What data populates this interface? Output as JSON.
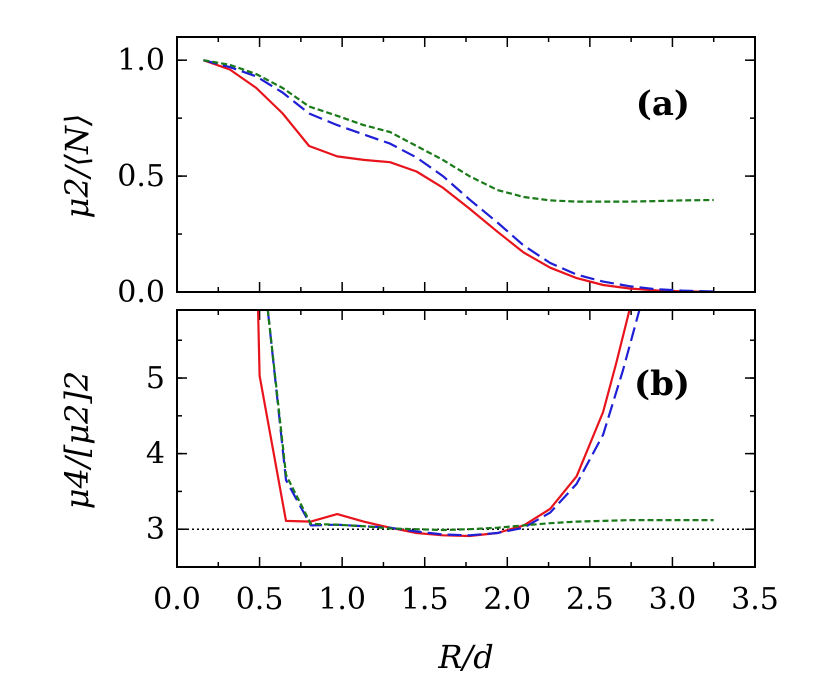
{
  "chart_data": [
    {
      "panel": "(a)",
      "type": "line",
      "ylabel": "μ2/⟨N⟩",
      "xlabel": "",
      "xlim": [
        0.0,
        3.5
      ],
      "ylim": [
        0.0,
        1.1
      ],
      "x_ticks": [
        "0.0",
        "0.5",
        "1.0",
        "1.5",
        "2.0",
        "2.5",
        "3.0",
        "3.5"
      ],
      "y_ticks": [
        "0.0",
        "0.5",
        "1.0"
      ],
      "series": [
        {
          "color": "#e8141c",
          "dash": "solid",
          "x": [
            0.16,
            0.32,
            0.48,
            0.64,
            0.8,
            0.97,
            1.13,
            1.29,
            1.45,
            1.61,
            1.77,
            1.94,
            2.1,
            2.26,
            2.42,
            2.58,
            2.74,
            2.9,
            3.06,
            3.25
          ],
          "y": [
            1.0,
            0.96,
            0.88,
            0.77,
            0.63,
            0.585,
            0.57,
            0.56,
            0.52,
            0.45,
            0.36,
            0.26,
            0.17,
            0.105,
            0.06,
            0.03,
            0.015,
            0.007,
            0.003,
            0.001
          ]
        },
        {
          "color": "#1f1fd6",
          "dash": "long",
          "x": [
            0.16,
            0.32,
            0.48,
            0.64,
            0.8,
            0.97,
            1.13,
            1.29,
            1.45,
            1.61,
            1.77,
            1.94,
            2.1,
            2.26,
            2.42,
            2.58,
            2.74,
            2.9,
            3.06,
            3.25
          ],
          "y": [
            1.0,
            0.97,
            0.93,
            0.86,
            0.77,
            0.72,
            0.68,
            0.64,
            0.58,
            0.5,
            0.4,
            0.3,
            0.2,
            0.125,
            0.075,
            0.045,
            0.025,
            0.012,
            0.006,
            0.002
          ]
        },
        {
          "color": "#1a7a1a",
          "dash": "short",
          "x": [
            0.16,
            0.32,
            0.48,
            0.64,
            0.8,
            0.97,
            1.13,
            1.29,
            1.45,
            1.61,
            1.77,
            1.94,
            2.1,
            2.26,
            2.42,
            2.58,
            2.74,
            2.9,
            3.06,
            3.25
          ],
          "y": [
            1.0,
            0.98,
            0.94,
            0.88,
            0.8,
            0.76,
            0.72,
            0.69,
            0.63,
            0.57,
            0.5,
            0.44,
            0.41,
            0.395,
            0.39,
            0.39,
            0.39,
            0.392,
            0.395,
            0.397
          ]
        }
      ]
    },
    {
      "panel": "(b)",
      "type": "line",
      "ylabel": "μ4/[μ2]2",
      "xlabel": "R/d",
      "xlim": [
        0.0,
        3.5
      ],
      "ylim": [
        2.5,
        5.9
      ],
      "x_ticks": [
        "0.0",
        "0.5",
        "1.0",
        "1.5",
        "2.0",
        "2.5",
        "3.0",
        "3.5"
      ],
      "y_ticks": [
        "3",
        "4",
        "5"
      ],
      "reference_line": {
        "y": 3,
        "style": "dotted",
        "color": "#000000"
      },
      "series": [
        {
          "color": "#e8141c",
          "dash": "solid",
          "x": [
            0.49,
            0.5,
            0.66,
            0.81,
            0.97,
            1.13,
            1.29,
            1.45,
            1.61,
            1.77,
            1.94,
            2.1,
            2.26,
            2.42,
            2.58,
            2.66,
            2.74
          ],
          "y": [
            6.0,
            5.03,
            3.11,
            3.1,
            3.2,
            3.1,
            3.02,
            2.95,
            2.92,
            2.91,
            2.95,
            3.05,
            3.27,
            3.7,
            4.55,
            5.2,
            5.9
          ]
        },
        {
          "color": "#1f1fd6",
          "dash": "long",
          "x": [
            0.55,
            0.66,
            0.81,
            0.97,
            1.13,
            1.29,
            1.45,
            1.61,
            1.77,
            1.94,
            2.1,
            2.26,
            2.42,
            2.58,
            2.7,
            2.8
          ],
          "y": [
            5.9,
            3.65,
            3.05,
            3.06,
            3.04,
            3.02,
            2.97,
            2.93,
            2.92,
            2.95,
            3.02,
            3.22,
            3.6,
            4.25,
            5.1,
            5.9
          ]
        },
        {
          "color": "#1a7a1a",
          "dash": "short",
          "x": [
            0.55,
            0.66,
            0.81,
            0.97,
            1.13,
            1.29,
            1.45,
            1.61,
            1.77,
            1.94,
            2.1,
            2.26,
            2.42,
            2.58,
            2.74,
            2.9,
            3.06,
            3.25
          ],
          "y": [
            5.9,
            3.72,
            3.07,
            3.06,
            3.04,
            3.01,
            3.0,
            2.99,
            3.0,
            3.02,
            3.05,
            3.08,
            3.1,
            3.11,
            3.12,
            3.12,
            3.12,
            3.12
          ]
        }
      ]
    }
  ]
}
